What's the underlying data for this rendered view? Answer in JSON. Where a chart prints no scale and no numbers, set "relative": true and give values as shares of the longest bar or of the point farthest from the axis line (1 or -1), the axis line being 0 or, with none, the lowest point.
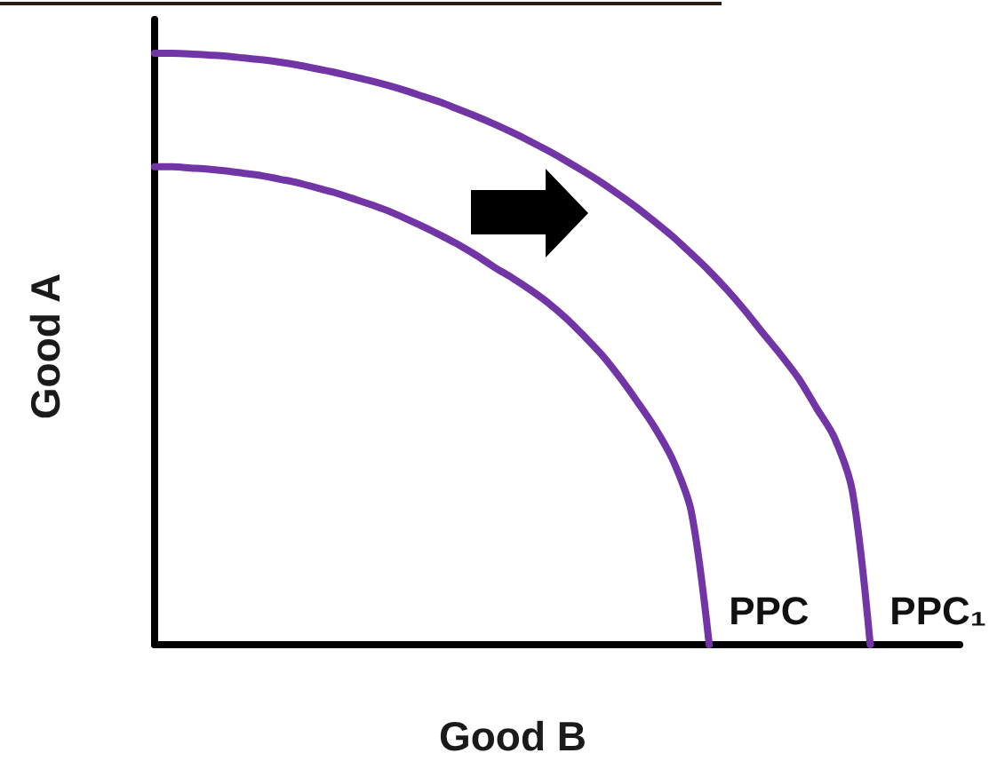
{
  "chart_data": {
    "type": "line",
    "xlabel": "Good B",
    "ylabel": "Good A",
    "relative": true,
    "marker": "none",
    "line_style": "solid",
    "categories": [
      null,
      null,
      null,
      null,
      null,
      null,
      null,
      null,
      null,
      null,
      null,
      null,
      null,
      null,
      null,
      null,
      null,
      null,
      null,
      null,
      null,
      null,
      null,
      null,
      null,
      null,
      null,
      null,
      null,
      null,
      null,
      null,
      null,
      null,
      null,
      null,
      null,
      null,
      null,
      null,
      null,
      null,
      null,
      null,
      null,
      null
    ],
    "series": [
      {
        "name": "PPC",
        "color": "#7135a5",
        "values": [
          0.808,
          0.808,
          0.806,
          0.804,
          0.801,
          0.797,
          0.793,
          0.787,
          0.781,
          0.773,
          0.765,
          0.755,
          0.745,
          0.734,
          0.721,
          0.707,
          0.692,
          0.676,
          0.658,
          0.638,
          0.62,
          0.6,
          0.578,
          0.552,
          0.522,
          0.49,
          0.452,
          0.41,
          0.365,
          0.31,
          0.225,
          0,
          null,
          null,
          null,
          null,
          null,
          null,
          null,
          null,
          null,
          null,
          null,
          null,
          null,
          null
        ]
      },
      {
        "name": "PPC₁",
        "color": "#7135a5",
        "values": [
          1,
          1,
          0.999,
          0.997,
          0.995,
          0.992,
          0.989,
          0.985,
          0.98,
          0.974,
          0.968,
          0.961,
          0.954,
          0.946,
          0.937,
          0.927,
          0.917,
          0.905,
          0.893,
          0.88,
          0.866,
          0.851,
          0.835,
          0.818,
          0.8,
          0.781,
          0.76,
          0.738,
          0.714,
          0.689,
          0.661,
          0.632,
          0.6,
          0.565,
          0.527,
          0.49,
          0.45,
          0.4,
          0.35,
          0.26,
          0,
          null,
          null,
          null,
          null,
          null
        ]
      }
    ]
  }
}
